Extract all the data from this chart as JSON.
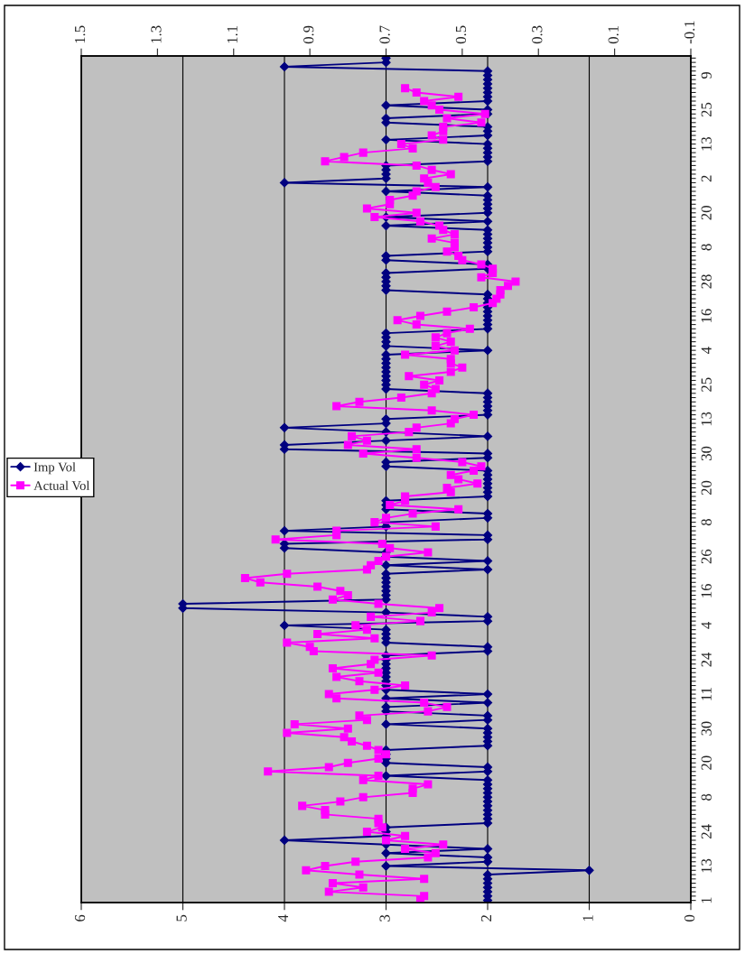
{
  "chart_data": {
    "type": "line",
    "orientation": "horizontal",
    "categories": [
      null,
      null,
      null,
      null,
      "9",
      null,
      null,
      null,
      null,
      null,
      null,
      null,
      "25",
      null,
      null,
      null,
      null,
      null,
      null,
      null,
      "13",
      null,
      null,
      null,
      null,
      null,
      null,
      null,
      "2",
      null,
      null,
      null,
      null,
      null,
      null,
      null,
      "20",
      null,
      null,
      null,
      null,
      null,
      null,
      null,
      "8",
      null,
      null,
      null,
      null,
      null,
      null,
      null,
      "28",
      null,
      null,
      null,
      null,
      null,
      null,
      null,
      "16",
      null,
      null,
      null,
      null,
      null,
      null,
      null,
      "4",
      null,
      null,
      null,
      null,
      null,
      null,
      null,
      "25",
      null,
      null,
      null,
      null,
      null,
      null,
      null,
      "13",
      null,
      null,
      null,
      null,
      null,
      null,
      null,
      "30",
      null,
      null,
      null,
      null,
      null,
      null,
      null,
      "20",
      null,
      null,
      null,
      null,
      null,
      null,
      null,
      "8",
      null,
      null,
      null,
      null,
      null,
      null,
      null,
      "26",
      null,
      null,
      null,
      null,
      null,
      null,
      null,
      "16",
      null,
      null,
      null,
      null,
      null,
      null,
      null,
      "4",
      null,
      null,
      null,
      null,
      null,
      null,
      null,
      "24",
      null,
      null,
      null,
      null,
      null,
      null,
      null,
      "11",
      null,
      null,
      null,
      null,
      null,
      null,
      null,
      "30",
      null,
      null,
      null,
      null,
      null,
      null,
      null,
      "20",
      null,
      null,
      null,
      null,
      null,
      null,
      null,
      "8",
      null,
      null,
      null,
      null,
      null,
      null,
      null,
      "24",
      null,
      null,
      null,
      null,
      null,
      null,
      null,
      "13",
      null,
      null,
      null,
      null,
      null,
      null,
      null,
      "1"
    ],
    "series": [
      {
        "name": "Imp Vol",
        "color": "#000080",
        "marker": "diamond",
        "values": [
          3,
          3,
          4,
          2,
          2,
          2,
          2,
          2,
          2,
          2,
          2,
          3,
          2,
          2,
          3,
          3,
          2,
          2,
          2,
          3,
          2,
          2,
          2,
          2,
          2,
          3,
          3,
          3,
          3,
          4,
          2,
          3,
          2,
          2,
          2,
          2,
          2,
          3,
          2,
          3,
          2,
          2,
          2,
          2,
          2,
          2,
          3,
          3,
          2,
          2,
          3,
          3,
          3,
          3,
          3,
          2,
          2,
          2,
          2,
          2,
          2,
          2,
          2,
          2,
          3,
          3,
          3,
          3,
          2,
          3,
          3,
          3,
          3,
          3,
          3,
          3,
          3,
          3,
          2,
          2,
          2,
          2,
          2,
          2,
          3,
          3,
          4,
          3,
          2,
          3,
          4,
          4,
          2,
          2,
          3,
          3,
          2,
          2,
          2,
          2,
          2,
          2,
          2,
          3,
          3,
          3,
          2,
          2,
          3,
          3,
          4,
          2,
          2,
          4,
          4,
          3,
          3,
          2,
          3,
          2,
          3,
          3,
          3,
          3,
          3,
          3,
          3,
          5,
          5,
          3,
          2,
          2,
          4,
          3,
          3,
          3,
          3,
          2,
          2,
          3,
          3,
          3,
          3,
          3,
          3,
          3,
          3,
          3,
          2,
          3,
          2,
          3,
          3,
          2,
          2,
          3,
          2,
          2,
          2,
          2,
          2,
          3,
          3,
          3,
          3,
          2,
          2,
          3,
          2,
          2,
          2,
          2,
          2,
          2,
          2,
          2,
          2,
          2,
          2,
          3,
          3,
          3,
          4,
          3,
          2,
          3,
          2,
          2,
          3,
          1,
          2,
          2,
          2,
          2,
          2,
          2,
          2
        ]
      },
      {
        "name": "Actual Vol",
        "color": "#ff00ff",
        "marker": "square",
        "axis": "x2",
        "values": [
          null,
          null,
          null,
          null,
          null,
          null,
          null,
          0.65,
          0.62,
          0.51,
          0.6,
          0.58,
          0.56,
          0.44,
          0.54,
          0.45,
          0.55,
          0.55,
          0.58,
          0.55,
          0.66,
          0.63,
          0.76,
          0.81,
          0.86,
          0.62,
          0.58,
          0.53,
          0.6,
          0.59,
          0.57,
          0.62,
          0.63,
          0.69,
          0.69,
          0.75,
          0.62,
          0.73,
          0.61,
          0.56,
          0.55,
          0.52,
          0.58,
          0.52,
          0.52,
          0.54,
          0.51,
          0.5,
          0.45,
          0.42,
          0.42,
          0.45,
          0.36,
          0.38,
          0.4,
          0.4,
          0.41,
          0.42,
          0.47,
          0.54,
          0.61,
          0.67,
          0.62,
          0.48,
          0.54,
          0.57,
          0.53,
          0.57,
          0.52,
          0.65,
          0.53,
          0.53,
          0.5,
          0.53,
          0.64,
          0.56,
          0.6,
          0.57,
          0.58,
          0.66,
          0.77,
          0.83,
          0.58,
          0.47,
          0.52,
          0.53,
          0.62,
          0.64,
          0.79,
          0.75,
          0.8,
          0.62,
          0.76,
          0.62,
          0.5,
          0.45,
          0.47,
          0.53,
          0.51,
          0.46,
          0.54,
          0.53,
          0.65,
          0.65,
          0.69,
          0.51,
          0.63,
          0.7,
          0.73,
          0.57,
          0.83,
          0.83,
          0.99,
          0.71,
          0.69,
          0.59,
          0.7,
          0.72,
          0.74,
          0.75,
          0.96,
          1.07,
          1.03,
          0.88,
          0.82,
          0.8,
          0.84,
          0.72,
          0.56,
          0.58,
          0.74,
          0.61,
          0.78,
          0.75,
          0.88,
          0.73,
          0.96,
          0.9,
          0.89,
          0.58,
          0.73,
          0.74,
          0.84,
          0.72,
          0.83,
          0.77,
          0.65,
          0.73,
          0.85,
          0.83,
          0.6,
          0.54,
          0.59,
          0.77,
          0.75,
          0.94,
          0.8,
          0.96,
          0.81,
          0.79,
          0.75,
          0.72,
          0.7,
          0.72,
          0.8,
          0.85,
          1.01,
          0.72,
          0.76,
          0.59,
          0.63,
          0.63,
          0.76,
          0.82,
          0.92,
          0.86,
          0.86,
          0.72,
          0.72,
          0.71,
          0.75,
          0.65,
          0.7,
          0.55,
          0.65,
          0.57,
          0.59,
          0.78,
          0.86,
          0.91,
          0.77,
          0.6,
          0.84,
          0.76,
          0.85,
          0.6,
          0.61
        ]
      }
    ],
    "xlim": [
      6,
      0
    ],
    "xticks": [
      0,
      1,
      2,
      3,
      4,
      5,
      6
    ],
    "x2lim": [
      1.5,
      -0.1
    ],
    "x2ticks": [
      1.5,
      1.3,
      1.1,
      0.9,
      0.7,
      0.5,
      0.3,
      0.1,
      -0.1
    ],
    "grid": "x",
    "legend": "left"
  }
}
